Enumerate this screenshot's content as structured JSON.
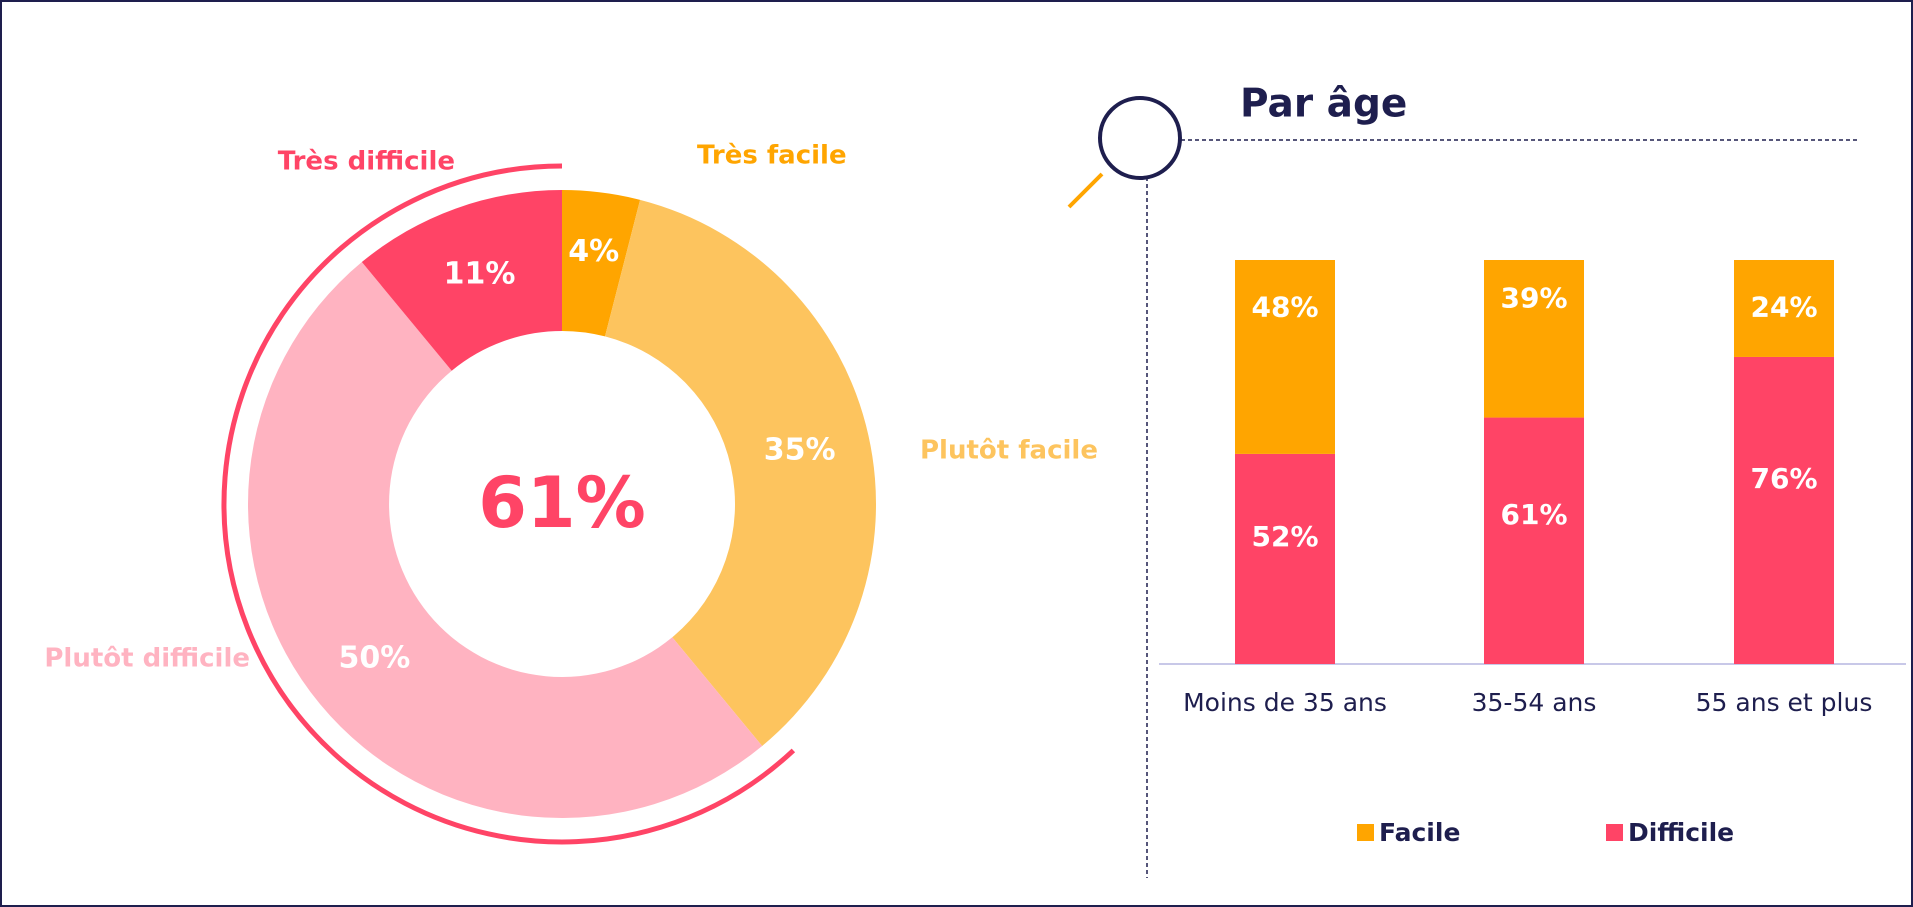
{
  "chart_data": [
    {
      "type": "donut",
      "categories": [
        "Très facile",
        "Plutôt facile",
        "Plutôt difficile",
        "Très difficile"
      ],
      "values": [
        4,
        35,
        50,
        11
      ],
      "value_labels": [
        "4%",
        "35%",
        "50%",
        "11%"
      ],
      "colors": [
        "#FFA500",
        "#FDC45E",
        "#FFB3C1",
        "#FF4466"
      ],
      "annotations": [
        {
          "value": 61,
          "label": "61%"
        }
      ]
    },
    {
      "type": "stacked_bar",
      "title": "Par âge",
      "categories": [
        "Moins de 35 ans",
        "35-54 ans",
        "55 ans et plus"
      ],
      "series": [
        {
          "name": "Facile",
          "color": "#FFA500",
          "values": [
            48,
            39,
            24
          ],
          "value_labels": [
            "48%",
            "39%",
            "24%"
          ]
        },
        {
          "name": "Difficile",
          "color": "#FF4466",
          "values": [
            52,
            61,
            76
          ],
          "value_labels": [
            "52%",
            "61%",
            "76%"
          ]
        }
      ],
      "legend": "bottom"
    }
  ]
}
